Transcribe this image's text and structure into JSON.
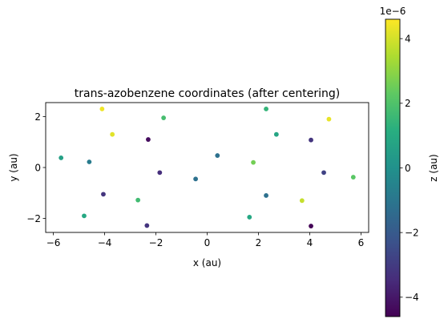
{
  "chart_data": {
    "type": "scatter",
    "title": "trans-azobenzene coordinates (after centering)",
    "xlabel": "x (au)",
    "ylabel": "y (au)",
    "xlim": [
      -6.3,
      6.3
    ],
    "ylim": [
      -2.55,
      2.55
    ],
    "xticks": [
      -6,
      -4,
      -2,
      0,
      2,
      4,
      6
    ],
    "xtick_labels": [
      "−6",
      "−4",
      "−2",
      "0",
      "2",
      "4",
      "6"
    ],
    "yticks": [
      -2,
      0,
      2
    ],
    "ytick_labels": [
      "−2",
      "0",
      "2"
    ],
    "grid": false,
    "colorbar": {
      "label": "z (au)",
      "colormap": "viridis",
      "range": [
        -4.6e-06,
        4.6e-06
      ],
      "ticks": [
        -4e-06,
        -2e-06,
        0,
        2e-06,
        4e-06
      ],
      "tick_labels": [
        "−4",
        "−2",
        "0",
        "2",
        "4"
      ],
      "offset_label": "1e−6"
    },
    "points": [
      {
        "x": -4.1,
        "y": 2.3,
        "z": 4.4e-06
      },
      {
        "x": -3.7,
        "y": 1.3,
        "z": 4.2e-06
      },
      {
        "x": -5.7,
        "y": 0.38,
        "z": 6e-07
      },
      {
        "x": -4.6,
        "y": 0.22,
        "z": -8e-07
      },
      {
        "x": -4.05,
        "y": -1.05,
        "z": -3.2e-06
      },
      {
        "x": -4.8,
        "y": -1.9,
        "z": 9e-07
      },
      {
        "x": -2.3,
        "y": 1.1,
        "z": -4.3e-06
      },
      {
        "x": -1.7,
        "y": 1.95,
        "z": 1.8e-06
      },
      {
        "x": -1.85,
        "y": -0.2,
        "z": -3.4e-06
      },
      {
        "x": -2.7,
        "y": -1.28,
        "z": 1.7e-06
      },
      {
        "x": -2.35,
        "y": -2.28,
        "z": -3.2e-06
      },
      {
        "x": -0.45,
        "y": -0.45,
        "z": -1.2e-06
      },
      {
        "x": 0.4,
        "y": 0.47,
        "z": -1.2e-06
      },
      {
        "x": 1.8,
        "y": 0.2,
        "z": 2.6e-06
      },
      {
        "x": 2.3,
        "y": 2.3,
        "z": 1.4e-06
      },
      {
        "x": 2.7,
        "y": 1.3,
        "z": 8e-07
      },
      {
        "x": 1.65,
        "y": -1.95,
        "z": 9e-07
      },
      {
        "x": 2.3,
        "y": -1.1,
        "z": -1.2e-06
      },
      {
        "x": 4.05,
        "y": 1.08,
        "z": -3.2e-06
      },
      {
        "x": 4.75,
        "y": 1.9,
        "z": 4.3e-06
      },
      {
        "x": 4.55,
        "y": -0.2,
        "z": -2.8e-06
      },
      {
        "x": 5.7,
        "y": -0.38,
        "z": 2.2e-06
      },
      {
        "x": 3.7,
        "y": -1.3,
        "z": 3.8e-06
      },
      {
        "x": 4.05,
        "y": -2.3,
        "z": -4.5e-06
      }
    ]
  }
}
